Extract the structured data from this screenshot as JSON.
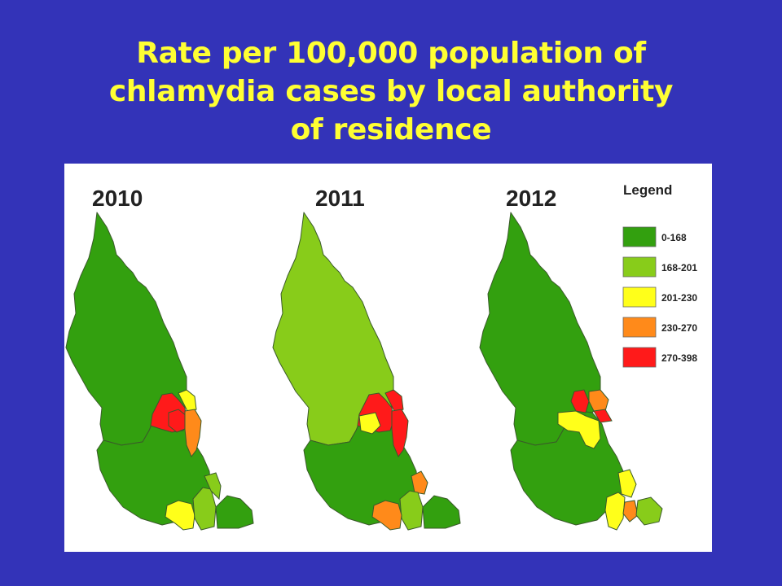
{
  "slide": {
    "title_lines": [
      "Rate per 100,000 population of",
      "chlamydia cases by local authority",
      "of residence"
    ],
    "background_color": "#3333b8",
    "title_color": "#ffff33"
  },
  "maps": [
    {
      "year": "2010",
      "north": "0-168",
      "south_west": "0-168",
      "central": [
        "270-398",
        "201-230",
        "270-398",
        "230-270"
      ],
      "south_east": [
        "201-230",
        "168-201",
        "168-201",
        "0-168"
      ]
    },
    {
      "year": "2011",
      "north": "168-201",
      "south_west": "0-168",
      "central": [
        "270-398",
        "270-398",
        "201-230",
        "270-398"
      ],
      "south_east": [
        "230-270",
        "168-201",
        "230-270",
        "0-168"
      ]
    },
    {
      "year": "2012",
      "north": "0-168",
      "south_west": "0-168",
      "central": [
        "270-398",
        "230-270",
        "201-230",
        "270-398"
      ],
      "south_east": [
        "201-230",
        "201-230",
        "230-270",
        "168-201"
      ]
    }
  ],
  "legend": {
    "title": "Legend",
    "items": [
      {
        "label": "0-168",
        "color": "#33a00f"
      },
      {
        "label": "168-201",
        "color": "#88cc1a"
      },
      {
        "label": "201-230",
        "color": "#ffff1a"
      },
      {
        "label": "230-270",
        "color": "#ff8a1a"
      },
      {
        "label": "270-398",
        "color": "#ff1a1a"
      }
    ]
  }
}
